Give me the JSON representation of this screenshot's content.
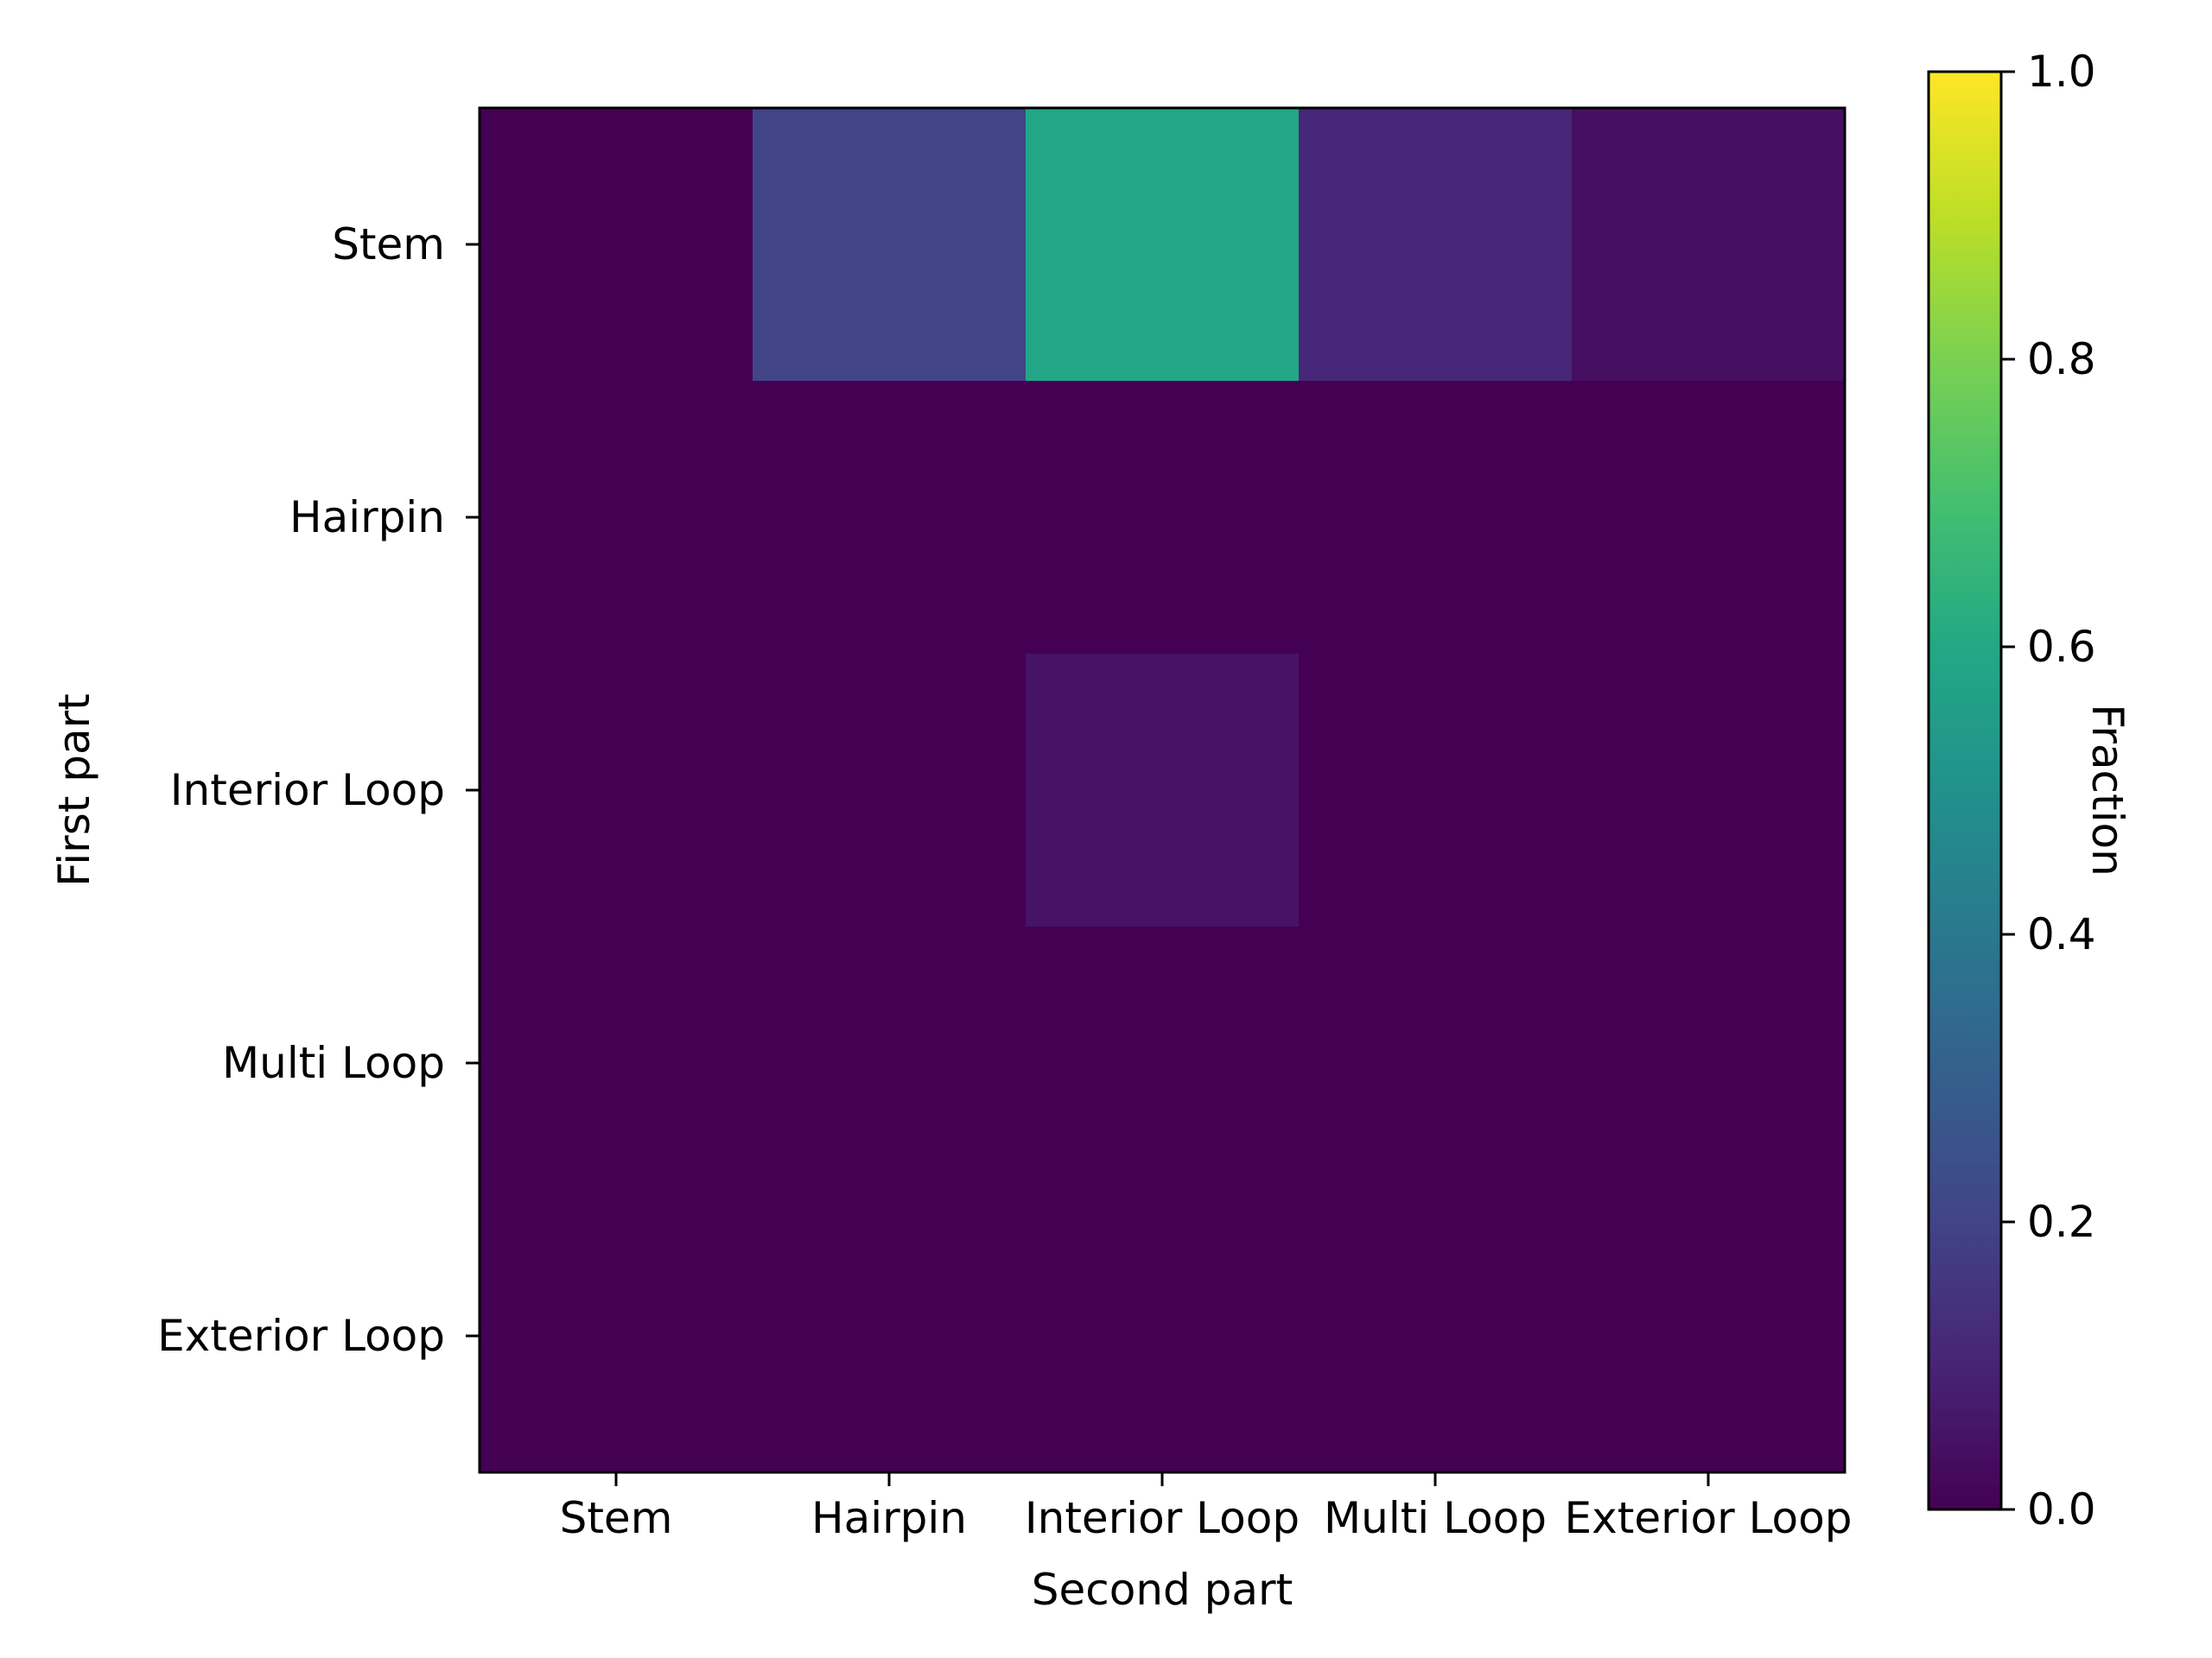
{
  "chart_data": {
    "type": "heatmap",
    "title": "",
    "xlabel": "Second part",
    "ylabel": "First part",
    "x_categories": [
      "Stem",
      "Hairpin",
      "Interior Loop",
      "Multi Loop",
      "Exterior Loop"
    ],
    "y_categories": [
      "Stem",
      "Hairpin",
      "Interior Loop",
      "Multi Loop",
      "Exterior Loop"
    ],
    "values": [
      [
        0.0,
        0.2,
        0.59,
        0.11,
        0.04
      ],
      [
        0.0,
        0.0,
        0.0,
        0.0,
        0.0
      ],
      [
        0.0,
        0.0,
        0.05,
        0.0,
        0.0
      ],
      [
        0.0,
        0.0,
        0.0,
        0.0,
        0.0
      ],
      [
        0.0,
        0.0,
        0.0,
        0.0,
        0.0
      ]
    ],
    "colormap": "viridis",
    "colorbar": {
      "label": "Fraction",
      "range": [
        0.0,
        1.0
      ],
      "ticks": [
        "0.0",
        "0.2",
        "0.4",
        "0.6",
        "0.8",
        "1.0"
      ],
      "tick_values": [
        0.0,
        0.2,
        0.4,
        0.6,
        0.8,
        1.0
      ]
    },
    "grid": false,
    "legend": "none"
  }
}
